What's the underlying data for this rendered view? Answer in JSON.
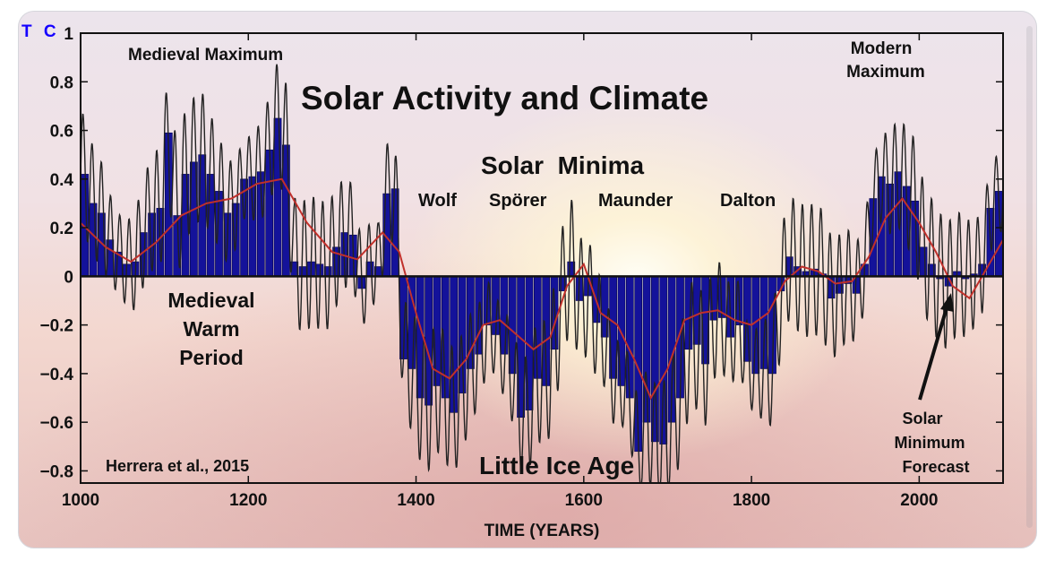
{
  "watermark": "T C",
  "chart_data": {
    "type": "bar",
    "title": "Solar Activity and Climate",
    "xlabel": "TIME (YEARS)",
    "ylabel": "",
    "xlim": [
      1000,
      2100
    ],
    "ylim": [
      -0.85,
      1.0
    ],
    "x_ticks": [
      1000,
      1200,
      1400,
      1600,
      1800,
      2000
    ],
    "y_ticks": [
      1,
      0.8,
      0.6,
      0.4,
      0.2,
      0,
      -0.2,
      -0.4,
      -0.6,
      -0.8
    ],
    "y_tick_labels": [
      "1",
      "0.8",
      "0.6",
      "0.4",
      "0.2",
      "0",
      "−0.2",
      "−0.4",
      "−0.6",
      "−0.8"
    ],
    "bar_width_years": 10,
    "bars": {
      "x": [
        1000,
        1010,
        1020,
        1030,
        1040,
        1050,
        1060,
        1070,
        1080,
        1090,
        1100,
        1110,
        1120,
        1130,
        1140,
        1150,
        1160,
        1170,
        1180,
        1190,
        1200,
        1210,
        1220,
        1230,
        1240,
        1250,
        1260,
        1270,
        1280,
        1290,
        1300,
        1310,
        1320,
        1330,
        1340,
        1350,
        1360,
        1370,
        1380,
        1390,
        1400,
        1410,
        1420,
        1430,
        1440,
        1450,
        1460,
        1470,
        1480,
        1490,
        1500,
        1510,
        1520,
        1530,
        1540,
        1550,
        1560,
        1570,
        1580,
        1590,
        1600,
        1610,
        1620,
        1630,
        1640,
        1650,
        1660,
        1670,
        1680,
        1690,
        1700,
        1710,
        1720,
        1730,
        1740,
        1750,
        1760,
        1770,
        1780,
        1790,
        1800,
        1810,
        1820,
        1830,
        1840,
        1850,
        1860,
        1870,
        1880,
        1890,
        1900,
        1910,
        1920,
        1930,
        1940,
        1950,
        1960,
        1970,
        1980,
        1990,
        2000,
        2010,
        2020,
        2030,
        2040,
        2050,
        2060,
        2070,
        2080,
        2090
      ],
      "values": [
        0.42,
        0.3,
        0.26,
        0.15,
        0.1,
        0.05,
        0.06,
        0.18,
        0.26,
        0.28,
        0.59,
        0.25,
        0.42,
        0.47,
        0.5,
        0.42,
        0.35,
        0.26,
        0.3,
        0.4,
        0.41,
        0.43,
        0.52,
        0.65,
        0.54,
        0.06,
        0.04,
        0.06,
        0.05,
        0.04,
        0.12,
        0.18,
        0.17,
        -0.05,
        0.06,
        0.04,
        0.34,
        0.36,
        -0.34,
        -0.38,
        -0.5,
        -0.53,
        -0.45,
        -0.5,
        -0.56,
        -0.48,
        -0.38,
        -0.32,
        -0.2,
        -0.24,
        -0.32,
        -0.4,
        -0.58,
        -0.55,
        -0.42,
        -0.45,
        -0.3,
        -0.06,
        0.06,
        -0.1,
        -0.08,
        -0.19,
        -0.25,
        -0.42,
        -0.45,
        -0.5,
        -0.72,
        -0.6,
        -0.68,
        -0.69,
        -0.6,
        -0.5,
        -0.3,
        -0.28,
        -0.36,
        -0.18,
        -0.17,
        -0.25,
        -0.2,
        -0.35,
        -0.4,
        -0.38,
        -0.4,
        -0.06,
        0.08,
        0.04,
        0.02,
        0.03,
        0.01,
        -0.09,
        -0.07,
        -0.03,
        -0.07,
        0.05,
        0.32,
        0.41,
        0.38,
        0.43,
        0.37,
        0.31,
        0.12,
        0.05,
        -0.01,
        -0.04,
        0.02,
        -0.01,
        0.01,
        0.05,
        0.28,
        0.35
      ]
    },
    "smooth_line": {
      "name": "smoothed trend",
      "x": [
        1000,
        1030,
        1060,
        1090,
        1120,
        1150,
        1180,
        1210,
        1240,
        1270,
        1300,
        1330,
        1360,
        1380,
        1400,
        1420,
        1440,
        1460,
        1480,
        1500,
        1520,
        1540,
        1560,
        1580,
        1600,
        1620,
        1640,
        1660,
        1680,
        1700,
        1720,
        1740,
        1760,
        1780,
        1800,
        1820,
        1840,
        1860,
        1880,
        1900,
        1920,
        1940,
        1960,
        1980,
        2000,
        2020,
        2040,
        2060,
        2080,
        2100
      ],
      "values": [
        0.22,
        0.12,
        0.06,
        0.14,
        0.25,
        0.3,
        0.32,
        0.38,
        0.4,
        0.22,
        0.1,
        0.07,
        0.18,
        0.1,
        -0.15,
        -0.38,
        -0.42,
        -0.34,
        -0.2,
        -0.18,
        -0.24,
        -0.3,
        -0.25,
        -0.04,
        0.05,
        -0.15,
        -0.2,
        -0.34,
        -0.5,
        -0.38,
        -0.18,
        -0.15,
        -0.14,
        -0.18,
        -0.2,
        -0.15,
        -0.02,
        0.04,
        0.02,
        -0.03,
        -0.02,
        0.08,
        0.24,
        0.32,
        0.22,
        0.1,
        -0.04,
        -0.09,
        0.03,
        0.15
      ]
    },
    "annotations": {
      "medieval_maximum": "Medieval Maximum",
      "solar_minima": "Solar  Minima",
      "wolf": "Wolf",
      "sporer": "Spörer",
      "maunder": "Maunder",
      "dalton": "Dalton",
      "modern_maximum_1": "Modern",
      "modern_maximum_2": "Maximum",
      "medieval_warm_1": "Medieval",
      "medieval_warm_2": "Warm",
      "medieval_warm_3": "Period",
      "little_ice_age": "Little Ice Age",
      "forecast_1": "Solar",
      "forecast_2": "Minimum",
      "forecast_3": "Forecast",
      "source": "Herrera et al., 2015"
    }
  },
  "colors": {
    "bar_fill": "#14129a",
    "bar_stroke": "#05054e",
    "oscillation": "#222222",
    "trend": "#c0302b",
    "axis": "#111111"
  }
}
